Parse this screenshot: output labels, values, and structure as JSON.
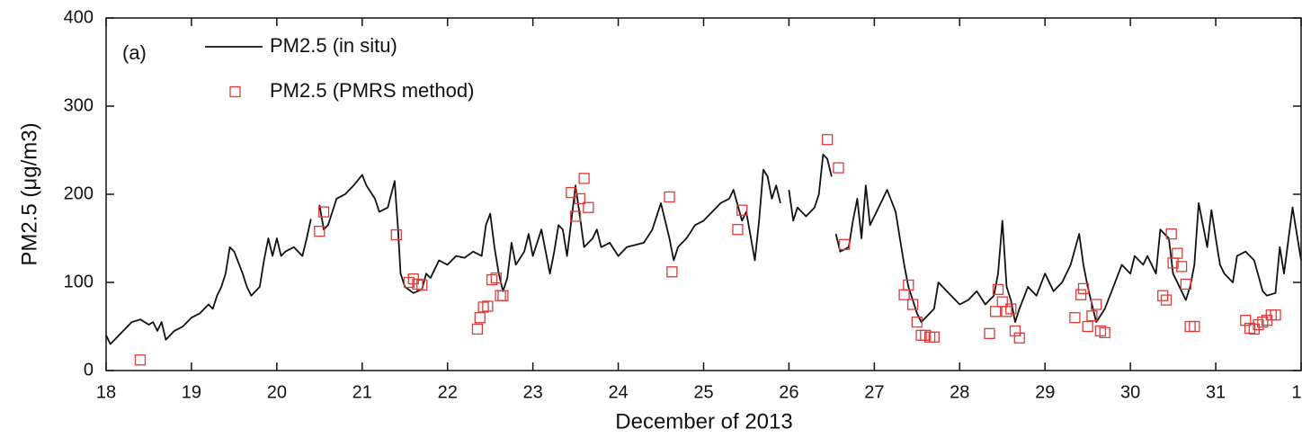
{
  "chart_data": {
    "type": "line",
    "annotation": "(a)",
    "x_label": "December of 2013",
    "y_label": "PM2.5 (μg/m3)",
    "xlim": [
      18,
      32
    ],
    "xticks": [
      18,
      19,
      20,
      21,
      22,
      23,
      24,
      25,
      26,
      27,
      28,
      29,
      30,
      31,
      {
        "value": 32,
        "label": "1"
      }
    ],
    "ylim": [
      0,
      400
    ],
    "yticks": [
      0,
      100,
      200,
      300,
      400
    ],
    "legend": "top-left",
    "series": [
      {
        "name": "PM2.5 (in situ)",
        "color": "#111111",
        "mode": "line",
        "x": [
          18.0,
          18.05,
          18.1,
          18.2,
          18.3,
          18.4,
          18.5,
          18.55,
          18.6,
          18.65,
          18.7,
          18.8,
          18.9,
          19.0,
          19.1,
          19.2,
          19.25,
          19.3,
          19.35,
          19.4,
          19.45,
          19.5,
          19.6,
          19.65,
          19.7,
          19.8,
          19.85,
          19.9,
          19.95,
          20.0,
          20.05,
          20.1,
          20.2,
          20.3,
          20.35,
          20.4,
          20.45,
          20.5,
          20.55,
          20.6,
          20.65,
          20.7,
          20.8,
          20.85,
          20.9,
          21.0,
          21.05,
          21.15,
          21.2,
          21.3,
          21.38,
          21.42,
          21.45,
          21.5,
          21.6,
          21.7,
          21.75,
          21.8,
          21.85,
          21.9,
          22.0,
          22.1,
          22.2,
          22.3,
          22.4,
          22.45,
          22.5,
          22.55,
          22.6,
          22.65,
          22.7,
          22.75,
          22.8,
          22.9,
          22.95,
          23.0,
          23.05,
          23.1,
          23.2,
          23.25,
          23.3,
          23.35,
          23.4,
          23.45,
          23.5,
          23.55,
          23.6,
          23.7,
          23.75,
          23.8,
          23.9,
          24.0,
          24.1,
          24.3,
          24.4,
          24.5,
          24.6,
          24.65,
          24.7,
          24.8,
          24.9,
          25.0,
          25.1,
          25.2,
          25.3,
          25.35,
          25.45,
          25.5,
          25.6,
          25.65,
          25.7,
          25.75,
          25.8,
          25.85,
          25.9,
          25.95,
          26.0,
          26.05,
          26.1,
          26.2,
          26.3,
          26.35,
          26.4,
          26.45,
          26.5,
          26.52,
          26.55,
          26.6,
          26.7,
          26.75,
          26.8,
          26.85,
          26.9,
          26.95,
          27.0,
          27.1,
          27.15,
          27.25,
          27.3,
          27.35,
          27.4,
          27.45,
          27.5,
          27.55,
          27.6,
          27.7,
          27.75,
          27.8,
          27.9,
          28.0,
          28.1,
          28.2,
          28.3,
          28.4,
          28.45,
          28.5,
          28.55,
          28.6,
          28.65,
          28.7,
          28.8,
          28.9,
          29.0,
          29.1,
          29.2,
          29.3,
          29.4,
          29.45,
          29.5,
          29.55,
          29.6,
          29.7,
          29.8,
          29.9,
          30.0,
          30.05,
          30.15,
          30.2,
          30.3,
          30.35,
          30.45,
          30.5,
          30.6,
          30.65,
          30.7,
          30.75,
          30.8,
          30.9,
          30.95,
          31.0,
          31.05,
          31.1,
          31.2,
          31.25,
          31.35,
          31.45,
          31.55,
          31.6,
          31.7,
          31.75,
          31.8,
          31.9,
          32.0
        ],
        "values": [
          40,
          30,
          35,
          45,
          55,
          58,
          52,
          55,
          45,
          55,
          35,
          45,
          50,
          60,
          65,
          75,
          70,
          85,
          95,
          110,
          140,
          135,
          110,
          95,
          85,
          95,
          125,
          150,
          130,
          150,
          130,
          135,
          140,
          130,
          150,
          172,
          null,
          188,
          160,
          165,
          180,
          195,
          200,
          205,
          210,
          222,
          210,
          195,
          180,
          185,
          215,
          160,
          110,
          95,
          88,
          92,
          110,
          105,
          115,
          125,
          120,
          130,
          128,
          135,
          130,
          165,
          178,
          140,
          110,
          90,
          105,
          145,
          120,
          135,
          155,
          130,
          145,
          160,
          110,
          135,
          165,
          160,
          130,
          170,
          210,
          175,
          140,
          150,
          160,
          140,
          145,
          130,
          140,
          145,
          160,
          190,
          150,
          125,
          140,
          150,
          165,
          170,
          180,
          190,
          195,
          205,
          170,
          180,
          125,
          170,
          228,
          220,
          195,
          210,
          190,
          null,
          205,
          170,
          185,
          175,
          185,
          200,
          245,
          240,
          220,
          null,
          155,
          135,
          140,
          170,
          195,
          150,
          210,
          165,
          175,
          195,
          205,
          180,
          150,
          120,
          95,
          80,
          65,
          55,
          60,
          70,
          100,
          95,
          85,
          75,
          80,
          90,
          75,
          85,
          110,
          170,
          95,
          80,
          55,
          70,
          95,
          85,
          110,
          90,
          100,
          120,
          155,
          120,
          95,
          75,
          55,
          70,
          95,
          120,
          110,
          130,
          120,
          130,
          110,
          160,
          150,
          110,
          90,
          80,
          95,
          120,
          190,
          140,
          182,
          150,
          120,
          110,
          100,
          130,
          135,
          125,
          90,
          85,
          88,
          140,
          110,
          185,
          125
        ]
      },
      {
        "name": "PM2.5 (PMRS method)",
        "color": "#e03a3a",
        "mode": "markers",
        "x": [
          18.4,
          20.5,
          20.55,
          21.4,
          21.55,
          21.6,
          21.65,
          21.7,
          22.35,
          22.38,
          22.42,
          22.47,
          22.52,
          22.57,
          22.62,
          22.65,
          23.45,
          23.5,
          23.55,
          23.6,
          23.65,
          24.6,
          24.63,
          25.4,
          25.45,
          26.45,
          26.58,
          26.65,
          27.35,
          27.4,
          27.45,
          27.5,
          27.55,
          27.6,
          27.65,
          27.7,
          28.35,
          28.42,
          28.45,
          28.5,
          28.55,
          28.6,
          28.65,
          28.7,
          29.35,
          29.42,
          29.45,
          29.5,
          29.55,
          29.6,
          29.65,
          29.7,
          30.38,
          30.42,
          30.48,
          30.5,
          30.55,
          30.6,
          30.65,
          30.7,
          30.75,
          31.35,
          31.4,
          31.45,
          31.5,
          31.55,
          31.6,
          31.65,
          31.7
        ],
        "values": [
          12,
          158,
          180,
          154,
          100,
          104,
          98,
          97,
          47,
          60,
          72,
          73,
          103,
          105,
          85,
          85,
          202,
          175,
          195,
          218,
          185,
          197,
          112,
          160,
          182,
          262,
          230,
          143,
          86,
          97,
          75,
          55,
          40,
          40,
          38,
          38,
          42,
          67,
          92,
          78,
          67,
          70,
          45,
          37,
          60,
          86,
          93,
          50,
          62,
          75,
          45,
          43,
          85,
          80,
          155,
          122,
          133,
          118,
          98,
          50,
          50,
          57,
          48,
          47,
          52,
          55,
          57,
          63,
          63
        ]
      }
    ]
  }
}
